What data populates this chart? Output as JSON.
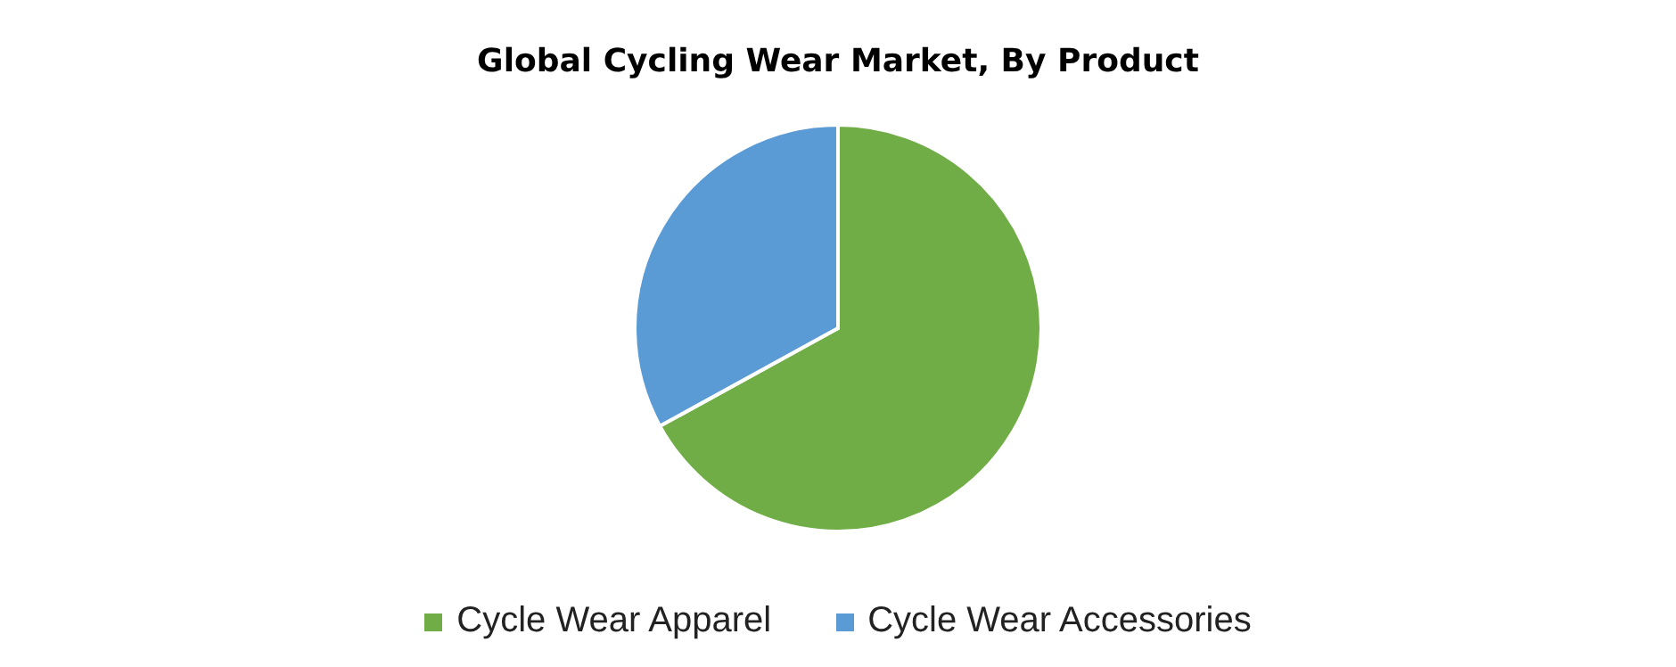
{
  "chart_data": {
    "type": "pie",
    "title": "Global Cycling Wear Market, By Product",
    "categories": [
      "Cycle Wear Apparel",
      "Cycle Wear Accessories"
    ],
    "values": [
      67,
      33
    ],
    "colors": [
      "#70ad47",
      "#5b9bd5"
    ],
    "legend": "bottom"
  }
}
